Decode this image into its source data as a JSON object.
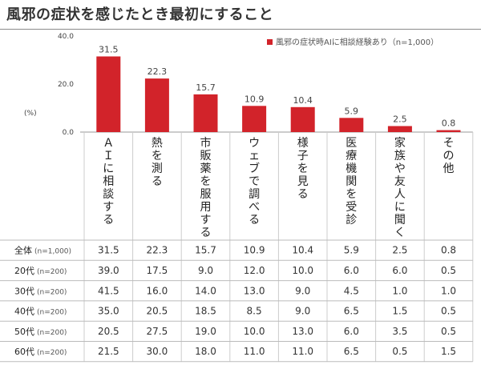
{
  "title": "風邪の症状を感じたとき最初にすること",
  "legend": "風邪の症状時AIに相談経験あり（n=1,000）",
  "colors": {
    "bar": "#d2232a",
    "axis": "#999999",
    "text": "#333333"
  },
  "chart_data": {
    "type": "bar",
    "title": "風邪の症状を感じたとき最初にすること",
    "ylabel": "(%)",
    "ylim": [
      0,
      40
    ],
    "yticks": [
      "0.0",
      "20.0",
      "40.0"
    ],
    "grid": false,
    "legend_position": "top-right",
    "categories": [
      "ＡＩに相談する",
      "熱を測る",
      "市販薬を服用する",
      "ウェブで調べる",
      "様子を見る",
      "医療機関を受診",
      "家族や友人に聞く",
      "その他"
    ],
    "series": [
      {
        "name": "風邪の症状時AIに相談経験あり（n=1,000）",
        "values": [
          31.5,
          22.3,
          15.7,
          10.9,
          10.4,
          5.9,
          2.5,
          0.8
        ]
      }
    ],
    "value_labels": [
      "31.5",
      "22.3",
      "15.7",
      "10.9",
      "10.4",
      "5.9",
      "2.5",
      "0.8"
    ]
  },
  "table": {
    "rows": [
      {
        "label": "全体",
        "n": "(n=1,000)",
        "values": [
          "31.5",
          "22.3",
          "15.7",
          "10.9",
          "10.4",
          "5.9",
          "2.5",
          "0.8"
        ]
      },
      {
        "label": "20代",
        "n": "(n=200)",
        "values": [
          "39.0",
          "17.5",
          "9.0",
          "12.0",
          "10.0",
          "6.0",
          "6.0",
          "0.5"
        ]
      },
      {
        "label": "30代",
        "n": "(n=200)",
        "values": [
          "41.5",
          "16.0",
          "14.0",
          "13.0",
          "9.0",
          "4.5",
          "1.0",
          "1.0"
        ]
      },
      {
        "label": "40代",
        "n": "(n=200)",
        "values": [
          "35.0",
          "20.5",
          "18.5",
          "8.5",
          "9.0",
          "6.5",
          "1.5",
          "0.5"
        ]
      },
      {
        "label": "50代",
        "n": "(n=200)",
        "values": [
          "20.5",
          "27.5",
          "19.0",
          "10.0",
          "13.0",
          "6.0",
          "3.5",
          "0.5"
        ]
      },
      {
        "label": "60代",
        "n": "(n=200)",
        "values": [
          "21.5",
          "30.0",
          "18.0",
          "11.0",
          "11.0",
          "6.5",
          "0.5",
          "1.5"
        ]
      }
    ]
  }
}
